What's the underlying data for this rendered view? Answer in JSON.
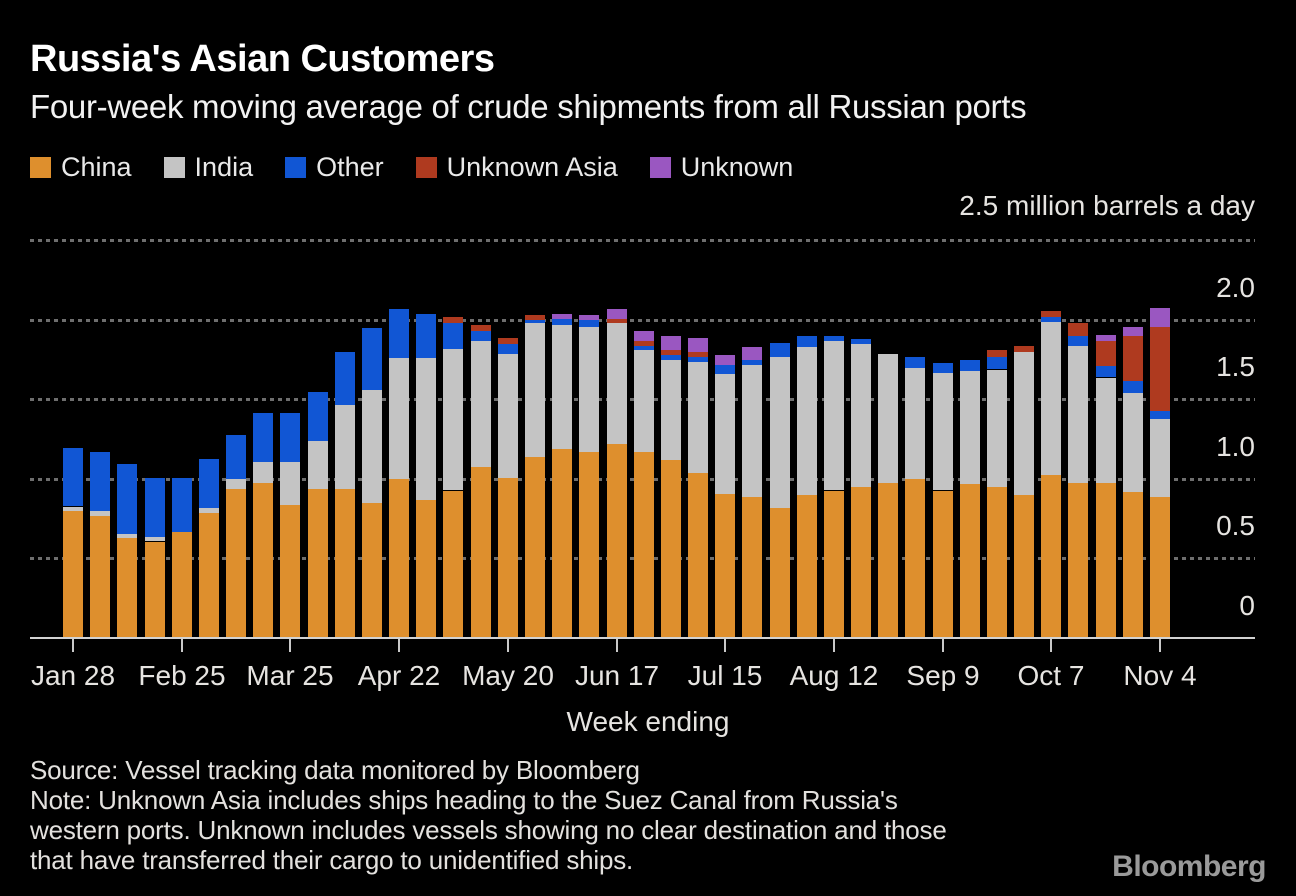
{
  "chart_data": {
    "type": "bar",
    "stacked": true,
    "title": "Russia's Asian Customers",
    "subtitle": "Four-week moving average of crude shipments from all Russian ports",
    "unit_label": "2.5 million barrels a day",
    "xlabel": "Week ending",
    "ylabel": "million barrels a day",
    "ylim": [
      0,
      2.5
    ],
    "grid": "dotted-horizontal",
    "legend_position": "top-left",
    "grid_values": [
      2.5,
      2.0,
      1.5,
      1.0,
      0.5
    ],
    "y_ticks": [
      {
        "value": 2.0,
        "label": "2.0"
      },
      {
        "value": 1.5,
        "label": "1.5"
      },
      {
        "value": 1.0,
        "label": "1.0"
      },
      {
        "value": 0.5,
        "label": "0.5"
      },
      {
        "value": 0.0,
        "label": "0"
      }
    ],
    "x_tick_every": 4,
    "x_tick_labels": [
      "Jan 28",
      "Feb 25",
      "Mar 25",
      "Apr 22",
      "May 20",
      "Jun 17",
      "Jul 15",
      "Aug 12",
      "Sep 9",
      "Oct 7",
      "Nov 4"
    ],
    "categories": [
      "Jan 28",
      "Feb 4",
      "Feb 11",
      "Feb 18",
      "Feb 25",
      "Mar 4",
      "Mar 11",
      "Mar 18",
      "Mar 25",
      "Apr 1",
      "Apr 8",
      "Apr 15",
      "Apr 22",
      "Apr 29",
      "May 6",
      "May 13",
      "May 20",
      "May 27",
      "Jun 3",
      "Jun 10",
      "Jun 17",
      "Jun 24",
      "Jul 1",
      "Jul 8",
      "Jul 15",
      "Jul 22",
      "Jul 29",
      "Aug 5",
      "Aug 12",
      "Aug 19",
      "Aug 26",
      "Sep 2",
      "Sep 9",
      "Sep 16",
      "Sep 23",
      "Sep 30",
      "Oct 7",
      "Oct 14",
      "Oct 21",
      "Oct 28",
      "Nov 4"
    ],
    "series": [
      {
        "name": "China",
        "color": "#DE8F2D",
        "values": [
          0.79,
          0.76,
          0.62,
          0.6,
          0.66,
          0.78,
          0.93,
          0.97,
          0.83,
          0.93,
          0.93,
          0.84,
          0.99,
          0.86,
          0.92,
          1.07,
          1.0,
          1.13,
          1.18,
          1.16,
          1.21,
          1.16,
          1.11,
          1.03,
          0.9,
          0.88,
          0.81,
          0.89,
          0.92,
          0.94,
          0.97,
          0.99,
          0.92,
          0.96,
          0.94,
          0.89,
          1.02,
          0.97,
          0.97,
          0.91,
          0.88
        ]
      },
      {
        "name": "India",
        "color": "#C4C4C4",
        "values": [
          0.03,
          0.03,
          0.03,
          0.03,
          0.0,
          0.03,
          0.06,
          0.13,
          0.27,
          0.3,
          0.53,
          0.71,
          0.76,
          0.89,
          0.89,
          0.79,
          0.78,
          0.84,
          0.78,
          0.79,
          0.76,
          0.64,
          0.63,
          0.7,
          0.75,
          0.83,
          0.95,
          0.93,
          0.94,
          0.9,
          0.81,
          0.7,
          0.74,
          0.71,
          0.74,
          0.9,
          0.96,
          0.86,
          0.66,
          0.62,
          0.49
        ]
      },
      {
        "name": "Other",
        "color": "#1156D4",
        "values": [
          0.37,
          0.37,
          0.44,
          0.37,
          0.34,
          0.31,
          0.28,
          0.31,
          0.31,
          0.31,
          0.33,
          0.39,
          0.31,
          0.28,
          0.16,
          0.06,
          0.06,
          0.02,
          0.04,
          0.04,
          0.0,
          0.03,
          0.03,
          0.03,
          0.06,
          0.03,
          0.09,
          0.07,
          0.03,
          0.03,
          0.0,
          0.07,
          0.06,
          0.07,
          0.08,
          0.0,
          0.03,
          0.06,
          0.07,
          0.08,
          0.05
        ]
      },
      {
        "name": "Unknown Asia",
        "color": "#AF3A1F",
        "values": [
          0,
          0,
          0,
          0,
          0,
          0,
          0,
          0,
          0,
          0,
          0,
          0,
          0,
          0,
          0.04,
          0.04,
          0.04,
          0.03,
          0,
          0,
          0.03,
          0.03,
          0.03,
          0.03,
          0,
          0,
          0,
          0,
          0,
          0,
          0,
          0,
          0,
          0,
          0.04,
          0.04,
          0.04,
          0.08,
          0.16,
          0.28,
          0.53
        ]
      },
      {
        "name": "Unknown",
        "color": "#9A57C1",
        "values": [
          0,
          0,
          0,
          0,
          0,
          0,
          0,
          0,
          0,
          0,
          0,
          0,
          0,
          0,
          0,
          0,
          0,
          0,
          0.03,
          0.03,
          0.06,
          0.06,
          0.09,
          0.09,
          0.06,
          0.08,
          0,
          0,
          0,
          0,
          0,
          0,
          0,
          0,
          0,
          0,
          0,
          0,
          0.04,
          0.06,
          0.12
        ]
      }
    ],
    "colors": {
      "background": "#000000",
      "text": "#FFFFFF",
      "axis": "#D2D2D2",
      "grid": "#6E6E6E"
    }
  },
  "footer": {
    "source": "Source: Vessel tracking data monitored by Bloomberg",
    "note_lines": [
      "Note: Unknown Asia includes ships heading to the Suez Canal from Russia's",
      "western ports. Unknown includes vessels showing no clear destination and those",
      "that have transferred their cargo to unidentified ships."
    ]
  },
  "branding": {
    "logo": "Bloomberg"
  }
}
